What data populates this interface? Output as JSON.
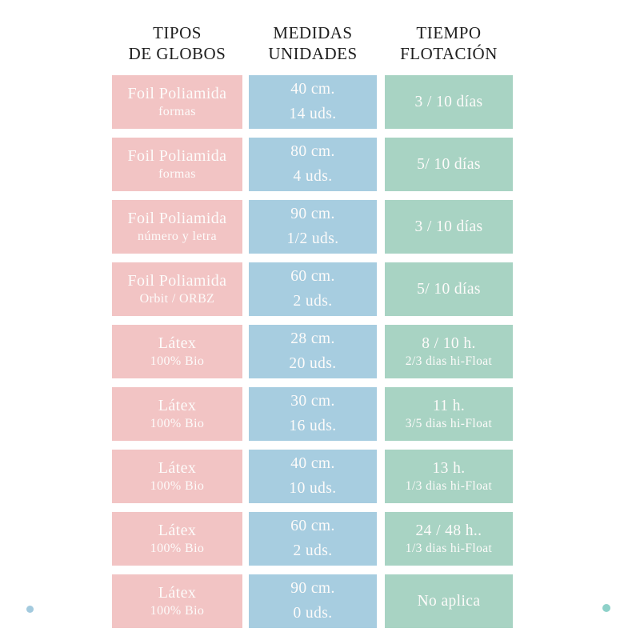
{
  "colors": {
    "pink": "#f2c4c4",
    "blue": "#a7cde0",
    "green": "#a8d3c3",
    "cellText": "#fdfbfa",
    "headerText": "#1d1d1d",
    "dotBlue": "#a3cade",
    "dotTeal": "#8ed1c9"
  },
  "headers": [
    {
      "line1": "TIPOS",
      "line2": "DE GLOBOS"
    },
    {
      "line1": "MEDIDAS",
      "line2": "UNIDADES"
    },
    {
      "line1": "TIEMPO",
      "line2": "FLOTACIÓN"
    }
  ],
  "rows": [
    {
      "tipo": {
        "main": "Foil Poliamida",
        "sub": "formas"
      },
      "medida": {
        "line1": "40 cm.",
        "line2": "14 uds."
      },
      "tiempo": {
        "main": "3 / 10 días",
        "sub": ""
      }
    },
    {
      "tipo": {
        "main": "Foil Poliamida",
        "sub": "formas"
      },
      "medida": {
        "line1": "80 cm.",
        "line2": "4 uds."
      },
      "tiempo": {
        "main": "5/ 10 días",
        "sub": ""
      }
    },
    {
      "tipo": {
        "main": "Foil Poliamida",
        "sub": "número y letra"
      },
      "medida": {
        "line1": "90 cm.",
        "line2": "1/2 uds."
      },
      "tiempo": {
        "main": "3 / 10 días",
        "sub": ""
      }
    },
    {
      "tipo": {
        "main": "Foil Poliamida",
        "sub": "Orbit / ORBZ"
      },
      "medida": {
        "line1": "60 cm.",
        "line2": "2 uds."
      },
      "tiempo": {
        "main": "5/ 10 días",
        "sub": ""
      }
    },
    {
      "tipo": {
        "main": "Látex",
        "sub": "100% Bio"
      },
      "medida": {
        "line1": "28 cm.",
        "line2": "20 uds."
      },
      "tiempo": {
        "main": "8 / 10 h.",
        "sub": "2/3 dias hi-Float"
      }
    },
    {
      "tipo": {
        "main": "Látex",
        "sub": "100% Bio"
      },
      "medida": {
        "line1": "30 cm.",
        "line2": "16 uds."
      },
      "tiempo": {
        "main": "11 h.",
        "sub": "3/5 dias hi-Float"
      }
    },
    {
      "tipo": {
        "main": "Látex",
        "sub": "100% Bio"
      },
      "medida": {
        "line1": "40 cm.",
        "line2": "10 uds."
      },
      "tiempo": {
        "main": "13 h.",
        "sub": "1/3 dias hi-Float"
      }
    },
    {
      "tipo": {
        "main": "Látex",
        "sub": "100% Bio"
      },
      "medida": {
        "line1": "60 cm.",
        "line2": "2 uds."
      },
      "tiempo": {
        "main": "24 / 48 h..",
        "sub": "1/3 dias hi-Float"
      }
    },
    {
      "tipo": {
        "main": "Látex",
        "sub": "100% Bio"
      },
      "medida": {
        "line1": "90 cm.",
        "line2": "0 uds."
      },
      "tiempo": {
        "main": "No aplica",
        "sub": ""
      }
    }
  ],
  "chart_data": {
    "type": "table",
    "title": "",
    "columns": [
      "TIPOS DE GLOBOS",
      "MEDIDAS UNIDADES",
      "TIEMPO FLOTACIÓN"
    ],
    "rows": [
      [
        "Foil Poliamida formas",
        "40 cm. 14 uds.",
        "3 / 10 días"
      ],
      [
        "Foil Poliamida formas",
        "80 cm. 4 uds.",
        "5/ 10 días"
      ],
      [
        "Foil Poliamida número y letra",
        "90 cm. 1/2 uds.",
        "3 / 10 días"
      ],
      [
        "Foil Poliamida Orbit / ORBZ",
        "60 cm. 2 uds.",
        "5/ 10 días"
      ],
      [
        "Látex 100% Bio",
        "28 cm. 20 uds.",
        "8 / 10 h. 2/3 dias hi-Float"
      ],
      [
        "Látex 100% Bio",
        "30 cm. 16 uds.",
        "11 h. 3/5 dias hi-Float"
      ],
      [
        "Látex 100% Bio",
        "40 cm. 10 uds.",
        "13 h. 1/3 dias hi-Float"
      ],
      [
        "Látex 100% Bio",
        "60 cm. 2 uds.",
        "24 / 48 h.. 1/3 dias hi-Float"
      ],
      [
        "Látex 100% Bio",
        "90 cm. 0 uds.",
        "No aplica"
      ]
    ],
    "layout": {
      "column_colors": [
        "#f2c4c4",
        "#a7cde0",
        "#a8d3c3"
      ],
      "grid": false,
      "legend": "none"
    }
  }
}
